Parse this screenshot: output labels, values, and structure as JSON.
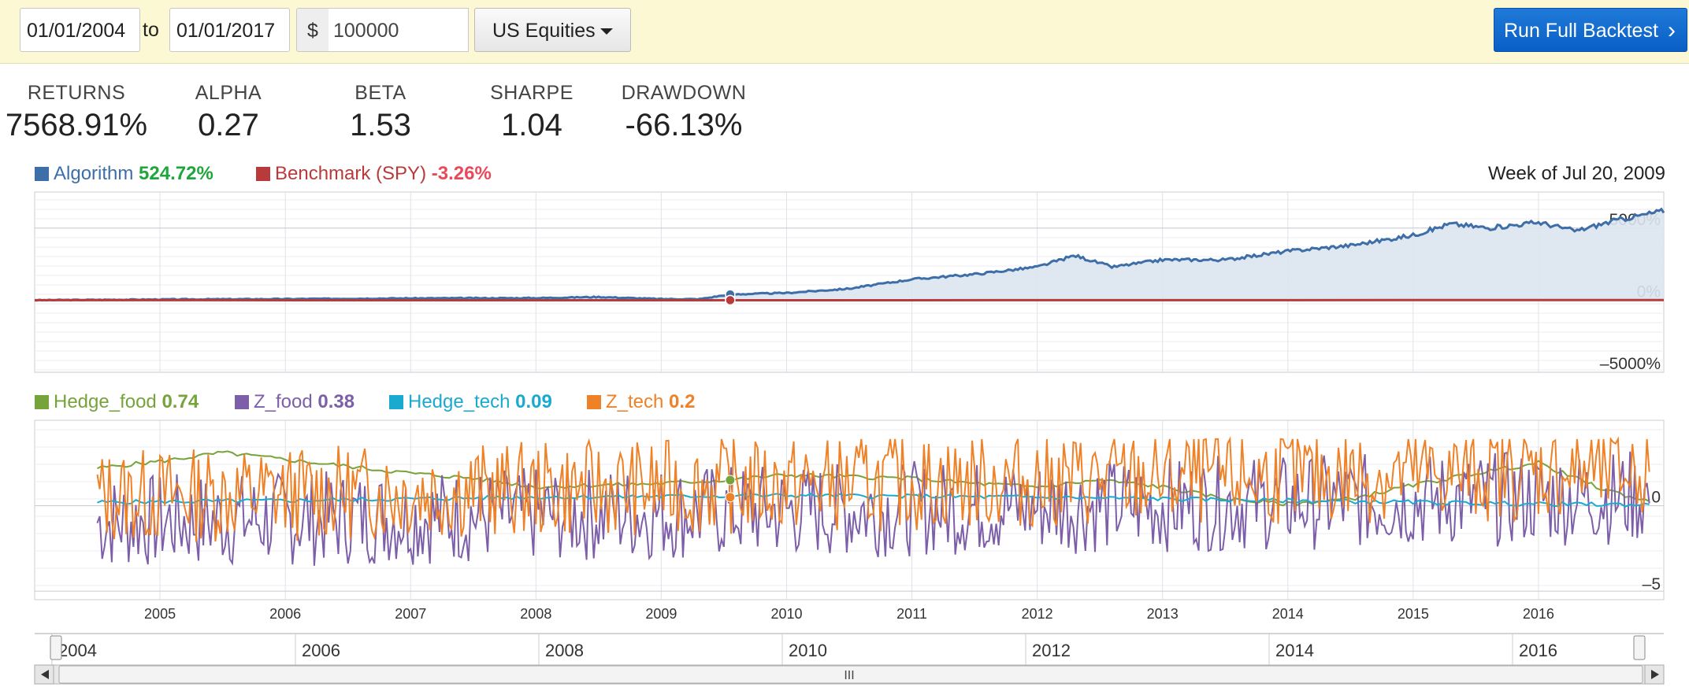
{
  "controls": {
    "start_date": "01/01/2004",
    "to_label": "to",
    "end_date": "01/01/2017",
    "currency_symbol": "$",
    "capital": "100000",
    "universe": "US Equities",
    "run_button": "Run Full Backtest"
  },
  "stats": [
    {
      "label": "RETURNS",
      "value": "7568.91%"
    },
    {
      "label": "ALPHA",
      "value": "0.27"
    },
    {
      "label": "BETA",
      "value": "1.53"
    },
    {
      "label": "SHARPE",
      "value": "1.04"
    },
    {
      "label": "DRAWDOWN",
      "value": "-66.13%"
    }
  ],
  "legend_top": [
    {
      "name": "Algorithm",
      "value": "524.72%",
      "color": "#3d6ea8",
      "value_color": "#1ea53b"
    },
    {
      "name": "Benchmark (SPY)",
      "value": "-3.26%",
      "color": "#b83a3a",
      "value_color": "#e84a5a"
    }
  ],
  "week_of": "Week of Jul 20, 2009",
  "legend_bottom": [
    {
      "name": "Hedge_food",
      "value": "0.74",
      "color": "#76a33a"
    },
    {
      "name": "Z_food",
      "value": "0.38",
      "color": "#7d5ea8"
    },
    {
      "name": "Hedge_tech",
      "value": "0.09",
      "color": "#1aaad0"
    },
    {
      "name": "Z_tech",
      "value": "0.2",
      "color": "#ef8127"
    }
  ],
  "chart_data": [
    {
      "type": "area",
      "x_range": [
        2004.0,
        2017.0
      ],
      "y_ticks": [
        {
          "value": 5000,
          "label": "5000%"
        },
        {
          "value": 0,
          "label": "0%"
        },
        {
          "value": -5000,
          "label": "–5000%"
        }
      ],
      "ylim": [
        -5000,
        7500
      ],
      "series": [
        {
          "name": "Algorithm",
          "color": "#3d6ea8",
          "x": [
            2004.0,
            2005.0,
            2006.0,
            2007.0,
            2008.0,
            2008.5,
            2009.0,
            2009.3,
            2009.55,
            2010.0,
            2010.5,
            2011.0,
            2011.5,
            2012.0,
            2012.3,
            2012.6,
            2013.0,
            2013.5,
            2014.0,
            2014.5,
            2015.0,
            2015.3,
            2015.6,
            2016.0,
            2016.3,
            2016.6,
            2017.0
          ],
          "y": [
            0,
            50,
            80,
            130,
            150,
            220,
            80,
            70,
            400,
            500,
            800,
            1450,
            1800,
            2300,
            3100,
            2300,
            2800,
            2800,
            3400,
            3800,
            4500,
            5300,
            5000,
            5400,
            4800,
            5500,
            6200
          ]
        },
        {
          "name": "Benchmark (SPY)",
          "color": "#b83a3a",
          "x": [
            2004.0,
            2009.5,
            2017.0
          ],
          "y": [
            0,
            -5,
            10
          ]
        }
      ]
    },
    {
      "type": "line",
      "x_ticks": [
        2005,
        2006,
        2007,
        2008,
        2009,
        2010,
        2011,
        2012,
        2013,
        2014,
        2015,
        2016
      ],
      "y_ticks": [
        {
          "value": 0,
          "label": "0"
        },
        {
          "value": -5,
          "label": "–5"
        }
      ],
      "ylim": [
        -5.5,
        5
      ],
      "series": [
        {
          "name": "Hedge_food",
          "color": "#76a33a",
          "x": [
            2004.5,
            2005.0,
            2005.5,
            2006.0,
            2006.5,
            2007.0,
            2007.5,
            2008.0,
            2008.5,
            2009.0,
            2009.5,
            2010.0,
            2010.5,
            2011.0,
            2011.5,
            2012.0,
            2012.5,
            2013.0,
            2013.5,
            2014.0,
            2014.5,
            2015.0,
            2015.5,
            2016.0,
            2016.5,
            2016.9
          ],
          "y": [
            2.2,
            2.6,
            3.1,
            2.7,
            2.3,
            1.9,
            1.6,
            1.1,
            1.2,
            1.3,
            1.5,
            1.8,
            1.7,
            1.6,
            1.3,
            1.1,
            1.5,
            1.1,
            0.4,
            0.1,
            0.4,
            1.2,
            1.9,
            2.5,
            1.0,
            0.2
          ]
        },
        {
          "name": "Z_food",
          "color": "#7d5ea8",
          "x": [
            2004.5,
            2016.9
          ],
          "y": [
            -3.0,
            -1.5
          ],
          "oscillation": 2.8,
          "seed": 7
        },
        {
          "name": "Hedge_tech",
          "color": "#1aaad0",
          "x": [
            2004.5,
            2006.0,
            2008.0,
            2010.0,
            2012.0,
            2014.0,
            2016.0,
            2016.9
          ],
          "y": [
            0.2,
            0.3,
            0.5,
            0.6,
            0.5,
            0.3,
            0.1,
            0.05
          ]
        },
        {
          "name": "Z_tech",
          "color": "#ef8127",
          "x": [
            2004.5,
            2016.9
          ],
          "y": [
            -1.5,
            0.0
          ],
          "oscillation": 2.8,
          "seed": 13
        }
      ]
    }
  ],
  "navigator": {
    "labels": [
      "2004",
      "2006",
      "2008",
      "2010",
      "2012",
      "2014",
      "2016"
    ],
    "scroll_grip": "III"
  }
}
